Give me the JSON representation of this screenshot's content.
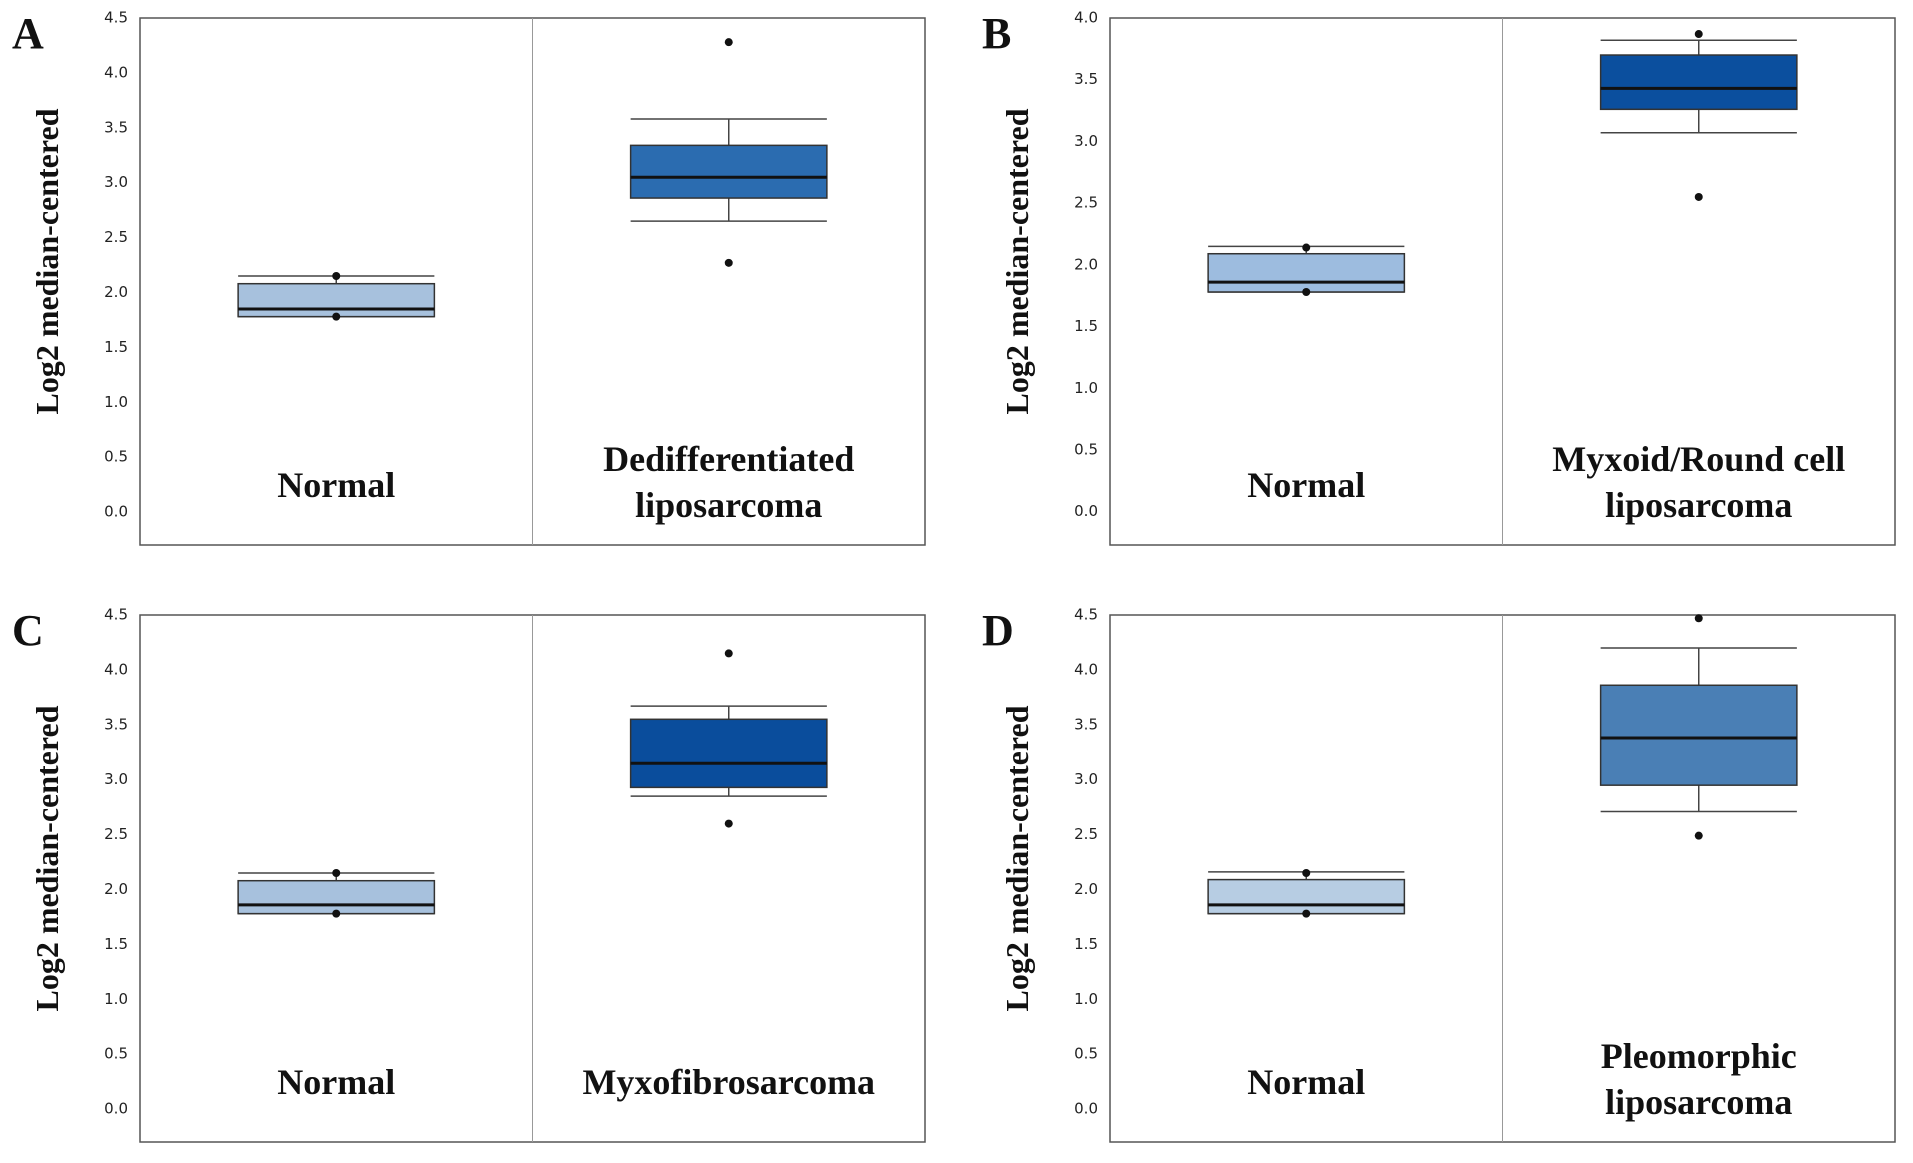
{
  "chart_data": [
    {
      "type": "box",
      "panel_label": "A",
      "ylabel": "Log2 median-centered",
      "ylim": [
        -0.3,
        4.5
      ],
      "yticks": [
        {
          "value": 0,
          "label": "0.0"
        },
        {
          "value": 0.5,
          "label": "0.5"
        },
        {
          "value": 1,
          "label": "1.0"
        },
        {
          "value": 1.5,
          "label": "1.5"
        },
        {
          "value": 2,
          "label": "2.0"
        },
        {
          "value": 2.5,
          "label": "2.5"
        },
        {
          "value": 3,
          "label": "3.0"
        },
        {
          "value": 3.5,
          "label": "3.5"
        },
        {
          "value": 4,
          "label": "4.0"
        },
        {
          "value": 4.5,
          "label": "4.5"
        }
      ],
      "categories": [
        [
          "Normal"
        ],
        [
          "Dedifferentiated",
          "liposarcoma"
        ]
      ],
      "boxes": [
        {
          "whisker_low": 1.78,
          "q1": 1.78,
          "median": 1.85,
          "q3": 2.08,
          "whisker_high": 2.15,
          "outliers": [
            2.15,
            1.78
          ],
          "color": "#a7c1dd"
        },
        {
          "whisker_low": 2.65,
          "q1": 2.86,
          "median": 3.05,
          "q3": 3.34,
          "whisker_high": 3.58,
          "outliers": [
            4.28,
            2.27
          ],
          "color": "#2b6cb0"
        }
      ]
    },
    {
      "type": "box",
      "panel_label": "B",
      "ylabel": "Log2 median-centered",
      "ylim": [
        -0.27,
        4.0
      ],
      "yticks": [
        {
          "value": 0,
          "label": "0.0"
        },
        {
          "value": 0.5,
          "label": "0.5"
        },
        {
          "value": 1,
          "label": "1.0"
        },
        {
          "value": 1.5,
          "label": "1.5"
        },
        {
          "value": 2,
          "label": "2.0"
        },
        {
          "value": 2.5,
          "label": "2.5"
        },
        {
          "value": 3,
          "label": "3.0"
        },
        {
          "value": 3.5,
          "label": "3.5"
        },
        {
          "value": 4,
          "label": "4.0"
        }
      ],
      "categories": [
        [
          "Normal"
        ],
        [
          "Myxoid/Round cell",
          "liposarcoma"
        ]
      ],
      "boxes": [
        {
          "whisker_low": 1.78,
          "q1": 1.78,
          "median": 1.86,
          "q3": 2.09,
          "whisker_high": 2.15,
          "outliers": [
            2.14,
            1.78
          ],
          "color": "#9dbcdf"
        },
        {
          "whisker_low": 3.07,
          "q1": 3.26,
          "median": 3.43,
          "q3": 3.7,
          "whisker_high": 3.82,
          "outliers": [
            3.87,
            2.55
          ],
          "color": "#0b4f9e"
        }
      ]
    },
    {
      "type": "box",
      "panel_label": "C",
      "ylabel": "Log2 median-centered",
      "ylim": [
        -0.3,
        4.5
      ],
      "yticks": [
        {
          "value": 0,
          "label": "0.0"
        },
        {
          "value": 0.5,
          "label": "0.5"
        },
        {
          "value": 1,
          "label": "1.0"
        },
        {
          "value": 1.5,
          "label": "1.5"
        },
        {
          "value": 2,
          "label": "2.0"
        },
        {
          "value": 2.5,
          "label": "2.5"
        },
        {
          "value": 3,
          "label": "3.0"
        },
        {
          "value": 3.5,
          "label": "3.5"
        },
        {
          "value": 4,
          "label": "4.0"
        },
        {
          "value": 4.5,
          "label": "4.5"
        }
      ],
      "categories": [
        [
          "Normal"
        ],
        [
          "Myxofibrosarcoma"
        ]
      ],
      "boxes": [
        {
          "whisker_low": 1.78,
          "q1": 1.78,
          "median": 1.86,
          "q3": 2.08,
          "whisker_high": 2.15,
          "outliers": [
            2.15,
            1.78
          ],
          "color": "#a7c1dd"
        },
        {
          "whisker_low": 2.85,
          "q1": 2.93,
          "median": 3.15,
          "q3": 3.55,
          "whisker_high": 3.67,
          "outliers": [
            4.15,
            2.6
          ],
          "color": "#0a4d9c"
        }
      ]
    },
    {
      "type": "box",
      "panel_label": "D",
      "ylabel": "Log2 median-centered",
      "ylim": [
        -0.3,
        4.5
      ],
      "yticks": [
        {
          "value": 0,
          "label": "0.0"
        },
        {
          "value": 0.5,
          "label": "0.5"
        },
        {
          "value": 1,
          "label": "1.0"
        },
        {
          "value": 1.5,
          "label": "1.5"
        },
        {
          "value": 2,
          "label": "2.0"
        },
        {
          "value": 2.5,
          "label": "2.5"
        },
        {
          "value": 3,
          "label": "3.0"
        },
        {
          "value": 3.5,
          "label": "3.5"
        },
        {
          "value": 4,
          "label": "4.0"
        },
        {
          "value": 4.5,
          "label": "4.5"
        }
      ],
      "categories": [
        [
          "Normal"
        ],
        [
          "Pleomorphic",
          "liposarcoma"
        ]
      ],
      "boxes": [
        {
          "whisker_low": 1.78,
          "q1": 1.78,
          "median": 1.86,
          "q3": 2.09,
          "whisker_high": 2.16,
          "outliers": [
            2.15,
            1.78
          ],
          "color": "#b7cde3"
        },
        {
          "whisker_low": 2.71,
          "q1": 2.95,
          "median": 3.38,
          "q3": 3.86,
          "whisker_high": 4.2,
          "outliers": [
            4.47,
            2.49
          ],
          "color": "#4a7fb5"
        }
      ]
    }
  ]
}
